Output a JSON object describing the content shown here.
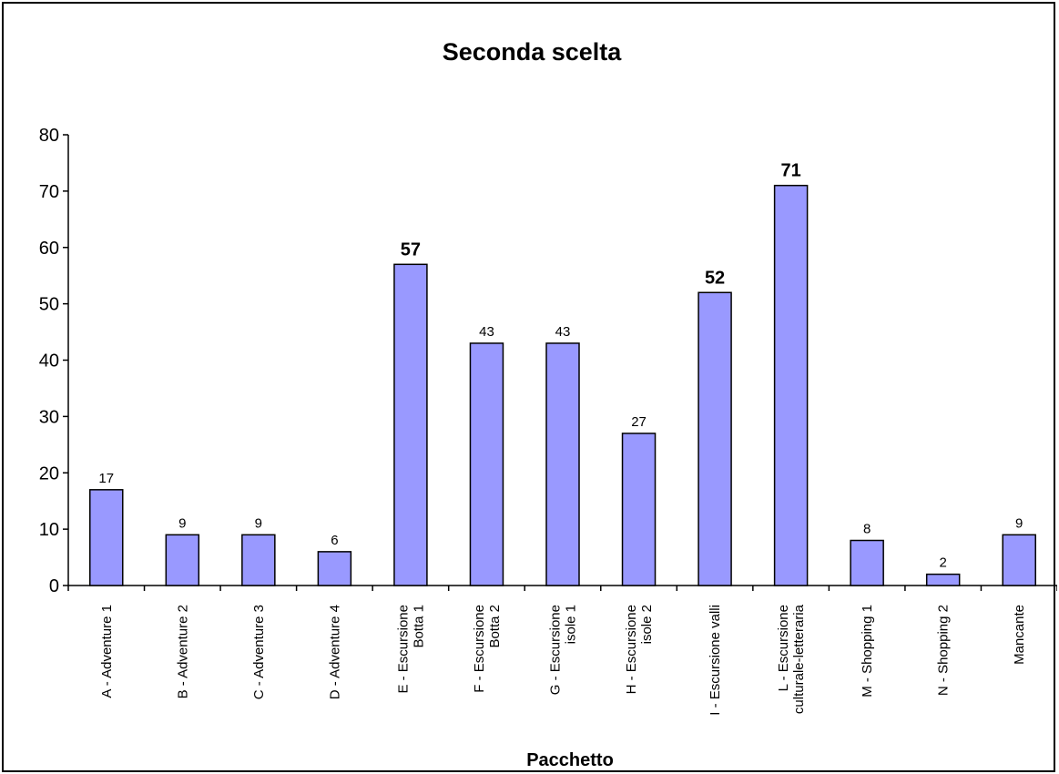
{
  "chart_data": {
    "type": "bar",
    "title": "Seconda scelta",
    "xlabel": "Pacchetto",
    "ylabel": "",
    "ylim": [
      0,
      80
    ],
    "yticks": [
      0,
      10,
      20,
      30,
      40,
      50,
      60,
      70,
      80
    ],
    "grid": false,
    "legend": "none",
    "bar_color": "#9999ff",
    "categories": [
      [
        "A - Adventure 1"
      ],
      [
        "B - Adventure 2"
      ],
      [
        "C - Adventure 3"
      ],
      [
        "D - Adventure 4"
      ],
      [
        "E - Escursione",
        "Botta 1"
      ],
      [
        "F - Escursione",
        "Botta 2"
      ],
      [
        "G - Escursione",
        "isole 1"
      ],
      [
        "H - Escursione",
        "isole 2"
      ],
      [
        "I - Escursione valli"
      ],
      [
        "L - Escursione",
        "culturale-letteraria"
      ],
      [
        "M - Shopping 1"
      ],
      [
        "N - Shopping 2"
      ],
      [
        "Mancante"
      ]
    ],
    "values": [
      17,
      9,
      9,
      6,
      57,
      43,
      43,
      27,
      52,
      71,
      8,
      2,
      9
    ],
    "highlighted": [
      false,
      false,
      false,
      false,
      true,
      false,
      false,
      false,
      true,
      true,
      false,
      false,
      false
    ]
  }
}
